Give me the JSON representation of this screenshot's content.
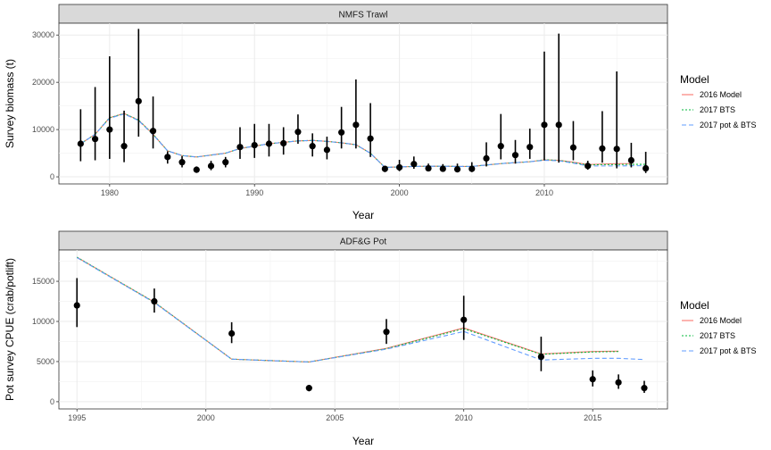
{
  "colors": {
    "model_2016": "#f8766d",
    "bts_2017": "#00ba38",
    "pot_bts_2017": "#619cff",
    "obs": "#000000",
    "strip": "#d9d9d9",
    "grid": "#ebebeb"
  },
  "chart_data": [
    {
      "type": "line",
      "title": "NMFS Trawl",
      "xlabel": "Year",
      "ylabel": "Survey biomass (t)",
      "xlim": [
        1976.5,
        2018.5
      ],
      "ylim": [
        -1500,
        32500
      ],
      "xticks": [
        1980,
        1990,
        2000,
        2010
      ],
      "yticks": [
        0,
        10000,
        20000,
        30000
      ],
      "ytick_labels": [
        "0",
        "10000",
        "20000",
        "30000"
      ],
      "grid": true,
      "legend": {
        "title": "Model",
        "position": "right",
        "entries": [
          "2016 Model",
          "2017 BTS",
          "2017 pot & BTS"
        ]
      },
      "observations": {
        "x": [
          1978,
          1979,
          1980,
          1981,
          1982,
          1983,
          1984,
          1985,
          1986,
          1987,
          1988,
          1989,
          1990,
          1991,
          1992,
          1993,
          1994,
          1995,
          1996,
          1997,
          1998,
          1999,
          2000,
          2001,
          2002,
          2003,
          2004,
          2005,
          2006,
          2007,
          2008,
          2009,
          2010,
          2011,
          2012,
          2013,
          2014,
          2015,
          2016,
          2017
        ],
        "y": [
          7000,
          8000,
          10000,
          6500,
          16000,
          9700,
          4200,
          3100,
          1500,
          2300,
          3100,
          6300,
          6700,
          7000,
          7100,
          9500,
          6500,
          5700,
          9400,
          11000,
          8100,
          1700,
          2000,
          2700,
          1800,
          1700,
          1600,
          1700,
          3900,
          6500,
          4600,
          6300,
          11000,
          11000,
          6200,
          2300,
          6000,
          5900,
          3500,
          1800
        ],
        "lower": [
          3300,
          3500,
          3800,
          3100,
          8500,
          6000,
          2800,
          2000,
          900,
          1400,
          2000,
          3800,
          4000,
          4300,
          4700,
          7000,
          4300,
          3700,
          6000,
          6000,
          4200,
          1000,
          1200,
          1700,
          1200,
          1100,
          1000,
          1000,
          2200,
          3700,
          2800,
          3800,
          3500,
          3000,
          3500,
          1500,
          3000,
          1800,
          2000,
          800
        ],
        "upper": [
          14300,
          19000,
          25500,
          14000,
          31300,
          17000,
          5400,
          4400,
          2200,
          3400,
          4200,
          10500,
          11200,
          11200,
          10500,
          13200,
          9200,
          8500,
          14800,
          20600,
          15600,
          2100,
          3600,
          4300,
          2800,
          2700,
          2800,
          3100,
          7300,
          13300,
          7800,
          10200,
          26500,
          30300,
          11800,
          3400,
          13900,
          22300,
          7200,
          5300
        ]
      },
      "series": [
        {
          "name": "2016 Model",
          "x": [
            1978,
            1979,
            1980,
            1981,
            1982,
            1983,
            1984,
            1985,
            1986,
            1987,
            1988,
            1989,
            1990,
            1991,
            1992,
            1993,
            1994,
            1995,
            1996,
            1997,
            1998,
            1999,
            2000,
            2001,
            2002,
            2003,
            2004,
            2005,
            2006,
            2007,
            2008,
            2009,
            2010,
            2011,
            2012,
            2013,
            2014,
            2015,
            2016
          ],
          "y": [
            7000,
            9000,
            12500,
            13400,
            12000,
            9000,
            5500,
            4500,
            4200,
            4600,
            5000,
            6000,
            6500,
            7000,
            7300,
            7600,
            7700,
            7500,
            7200,
            6800,
            5000,
            2000,
            2100,
            2200,
            2250,
            2250,
            2200,
            2200,
            2500,
            2800,
            3000,
            3200,
            3600,
            3500,
            3100,
            2600,
            2700,
            2800,
            2800
          ]
        },
        {
          "name": "2017 BTS",
          "x": [
            1978,
            1979,
            1980,
            1981,
            1982,
            1983,
            1984,
            1985,
            1986,
            1987,
            1988,
            1989,
            1990,
            1991,
            1992,
            1993,
            1994,
            1995,
            1996,
            1997,
            1998,
            1999,
            2000,
            2001,
            2002,
            2003,
            2004,
            2005,
            2006,
            2007,
            2008,
            2009,
            2010,
            2011,
            2012,
            2013,
            2014,
            2015,
            2016,
            2017
          ],
          "y": [
            7000,
            9000,
            12500,
            13400,
            12000,
            9000,
            5500,
            4500,
            4200,
            4600,
            5000,
            6000,
            6500,
            7000,
            7300,
            7600,
            7700,
            7500,
            7200,
            6800,
            5000,
            2000,
            2100,
            2200,
            2250,
            2250,
            2200,
            2200,
            2500,
            2800,
            3000,
            3200,
            3600,
            3500,
            3000,
            2500,
            2600,
            2600,
            2650,
            2650
          ]
        },
        {
          "name": "2017 pot & BTS",
          "x": [
            1978,
            1979,
            1980,
            1981,
            1982,
            1983,
            1984,
            1985,
            1986,
            1987,
            1988,
            1989,
            1990,
            1991,
            1992,
            1993,
            1994,
            1995,
            1996,
            1997,
            1998,
            1999,
            2000,
            2001,
            2002,
            2003,
            2004,
            2005,
            2006,
            2007,
            2008,
            2009,
            2010,
            2011,
            2012,
            2013,
            2014,
            2015,
            2016,
            2017
          ],
          "y": [
            7000,
            9000,
            12400,
            13300,
            11900,
            8900,
            5500,
            4500,
            4200,
            4600,
            5000,
            6000,
            6500,
            7000,
            7300,
            7600,
            7700,
            7500,
            7200,
            6800,
            5000,
            2000,
            2100,
            2200,
            2250,
            2250,
            2200,
            2200,
            2500,
            2800,
            3000,
            3200,
            3500,
            3400,
            2900,
            2300,
            2300,
            2300,
            2350,
            2350
          ]
        }
      ]
    },
    {
      "type": "line",
      "title": "ADF&G Pot",
      "xlabel": "Year",
      "ylabel": "Pot survey CPUE (crab/potlift)",
      "xlim": [
        1994.3,
        2017.9
      ],
      "ylim": [
        -900,
        18900
      ],
      "xticks": [
        1995,
        2000,
        2005,
        2010,
        2015
      ],
      "yticks": [
        0,
        5000,
        10000,
        15000
      ],
      "ytick_labels": [
        "0",
        "5000",
        "10000",
        "15000"
      ],
      "grid": true,
      "legend": {
        "title": "Model",
        "position": "right",
        "entries": [
          "2016 Model",
          "2017 BTS",
          "2017 pot & BTS"
        ]
      },
      "observations": {
        "x": [
          1995,
          1998,
          2001,
          2004,
          2007,
          2010,
          2013,
          2015,
          2016,
          2017
        ],
        "y": [
          12000,
          12500,
          8500,
          1700,
          8700,
          10200,
          5600,
          2800,
          2400,
          1700
        ],
        "lower": [
          9300,
          11100,
          7300,
          1300,
          7200,
          7700,
          3800,
          1900,
          1600,
          1100
        ],
        "upper": [
          15400,
          14100,
          9900,
          2000,
          10300,
          13200,
          8100,
          3900,
          3400,
          2600
        ]
      },
      "series": [
        {
          "name": "2016 Model",
          "x": [
            1995,
            1998,
            2001,
            2004,
            2007,
            2010,
            2013,
            2015,
            2016
          ],
          "y": [
            18000,
            12400,
            5300,
            4950,
            6650,
            9200,
            5950,
            6250,
            6300
          ]
        },
        {
          "name": "2017 BTS",
          "x": [
            1995,
            1998,
            2001,
            2004,
            2007,
            2010,
            2013,
            2015,
            2016
          ],
          "y": [
            18000,
            12400,
            5300,
            4950,
            6600,
            9100,
            5900,
            6200,
            6250
          ]
        },
        {
          "name": "2017 pot & BTS",
          "x": [
            1995,
            1998,
            2001,
            2004,
            2007,
            2010,
            2013,
            2015,
            2016,
            2017
          ],
          "y": [
            17950,
            12350,
            5300,
            4950,
            6550,
            8750,
            5200,
            5400,
            5400,
            5250
          ]
        }
      ]
    }
  ]
}
